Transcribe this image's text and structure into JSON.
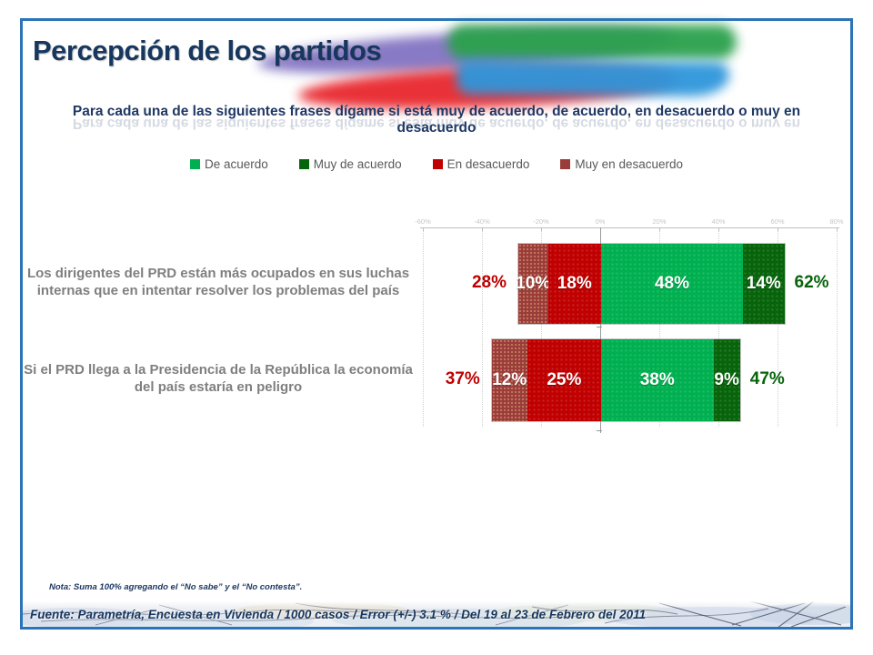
{
  "slide": {
    "title": "Percepción de los partidos",
    "subtitle": "Para cada una de las siguientes frases dígame si está muy de acuerdo, de acuerdo, en desacuerdo o muy en desacuerdo",
    "note": "Nota: Suma 100% agregando el “No sabe” y el “No contesta”.",
    "source": "Fuente: Parametría, Encuesta en Vivienda / 1000 casos / Error (+/-) 3.1 % / Del 19 al 23 de Febrero del 2011"
  },
  "decor_colors": {
    "purple": "#8273C2",
    "red": "#E8282E",
    "green": "#2BA14C",
    "blue": "#2E96DB"
  },
  "legend": [
    {
      "label": "De acuerdo",
      "color": "#00B050"
    },
    {
      "label": "Muy de acuerdo",
      "color": "#07640B"
    },
    {
      "label": "En desacuerdo",
      "color": "#C00000"
    },
    {
      "label": "Muy en desacuerdo",
      "color": "#9A3C39"
    }
  ],
  "chart_data": {
    "type": "bar",
    "orientation": "horizontal-diverging-stacked",
    "title": "",
    "xlabel": "",
    "ylabel": "",
    "xlim": [
      -60,
      80
    ],
    "grid": true,
    "legend_position": "top",
    "axis": {
      "ticks": [
        "-60%",
        "-40%",
        "-20%",
        "0%",
        "20%",
        "40%",
        "60%",
        "80%"
      ],
      "min": -60,
      "max": 80,
      "step": 20
    },
    "series_order": [
      "Muy en desacuerdo",
      "En desacuerdo",
      "De acuerdo",
      "Muy de acuerdo"
    ],
    "rows": [
      {
        "label": "Los dirigentes del PRD están más ocupados en sus luchas internas que en intentar resolver los problemas del país",
        "neg_total": "28%",
        "pos_total": "62%",
        "segments": [
          {
            "name": "Muy en desacuerdo",
            "value": 10,
            "label": "10%",
            "color": "#9A3C39",
            "sign": -1
          },
          {
            "name": "En desacuerdo",
            "value": 18,
            "label": "18%",
            "color": "#C00000",
            "sign": -1
          },
          {
            "name": "De acuerdo",
            "value": 48,
            "label": "48%",
            "color": "#00B050",
            "sign": 1
          },
          {
            "name": "Muy de acuerdo",
            "value": 14,
            "label": "14%",
            "color": "#07640B",
            "sign": 1
          }
        ]
      },
      {
        "label": "Si el PRD llega a la Presidencia de la República la economía del país estaría en peligro",
        "neg_total": "37%",
        "pos_total": "47%",
        "segments": [
          {
            "name": "Muy en desacuerdo",
            "value": 12,
            "label": "12%",
            "color": "#9A3C39",
            "sign": -1
          },
          {
            "name": "En desacuerdo",
            "value": 25,
            "label": "25%",
            "color": "#C00000",
            "sign": -1
          },
          {
            "name": "De acuerdo",
            "value": 38,
            "label": "38%",
            "color": "#00B050",
            "sign": 1
          },
          {
            "name": "Muy de acuerdo",
            "value": 9,
            "label": "9%",
            "color": "#07640B",
            "sign": 1
          }
        ]
      }
    ]
  }
}
